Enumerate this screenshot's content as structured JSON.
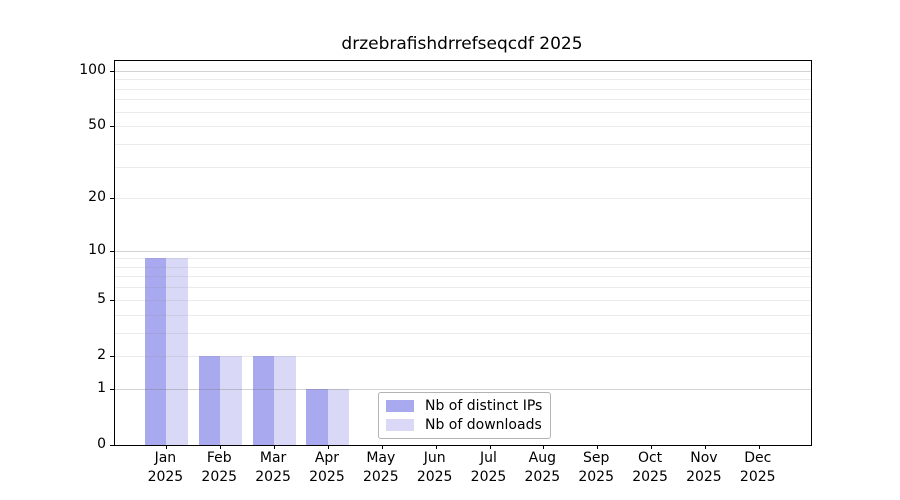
{
  "title": "drzebrafishdrrefseqcdf 2025",
  "colors": {
    "distinct_ips": "#a9a9f0",
    "downloads": "#d9d9f7",
    "axis": "#000000",
    "grid_minor": "#ececec",
    "grid_major": "#d0d0d0"
  },
  "legend": {
    "items": [
      {
        "label": "Nb of distinct IPs",
        "color_key": "distinct_ips"
      },
      {
        "label": "Nb of downloads",
        "color_key": "downloads"
      }
    ]
  },
  "chart_data": {
    "type": "bar",
    "title": "drzebrafishdrrefseqcdf 2025",
    "categories": [
      "Jan",
      "Feb",
      "Mar",
      "Apr",
      "May",
      "Jun",
      "Jul",
      "Aug",
      "Sep",
      "Oct",
      "Nov",
      "Dec"
    ],
    "year_label": "2025",
    "series": [
      {
        "name": "Nb of distinct IPs",
        "values": [
          9,
          2,
          2,
          1,
          0,
          0,
          0,
          0,
          0,
          0,
          0,
          0
        ]
      },
      {
        "name": "Nb of downloads",
        "values": [
          9,
          2,
          2,
          1,
          0,
          0,
          0,
          0,
          0,
          0,
          0,
          0
        ]
      }
    ],
    "y_ticks": [
      100,
      50,
      20,
      10,
      5,
      2,
      1,
      0
    ],
    "grid_minor_values": [
      2,
      3,
      4,
      5,
      6,
      7,
      8,
      9,
      20,
      30,
      40,
      50,
      60,
      70,
      80,
      90
    ],
    "grid_major_values": [
      1,
      10,
      100
    ],
    "yscale": "log1p",
    "ylim": [
      0,
      114
    ],
    "xlabel": "",
    "ylabel": "",
    "grid": true,
    "legend_position": "inside-bottom-center"
  }
}
